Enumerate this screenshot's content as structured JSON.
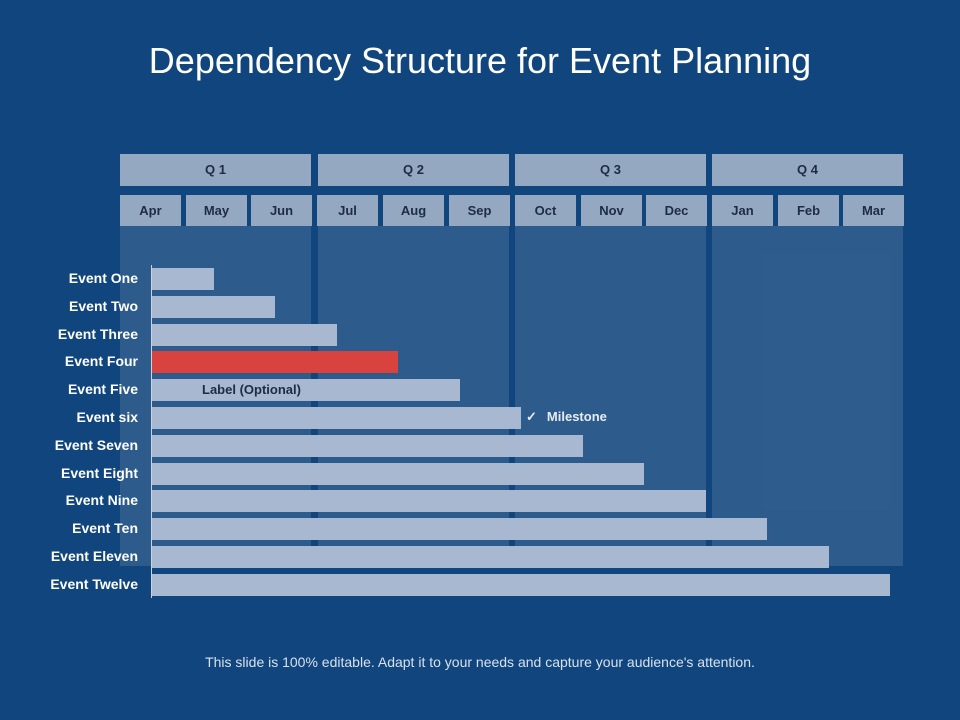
{
  "title": "Dependency Structure for Event Planning",
  "footer": "This slide is 100% editable. Adapt it to your needs and capture your audience's attention.",
  "bar_label": "Label (Optional)",
  "milestone": {
    "icon": "check-icon",
    "label": "Milestone"
  },
  "colors": {
    "background": "#11457d",
    "bar": "#a8b8d0",
    "highlight": "#d9433f",
    "header": "#95a8c2"
  },
  "chart_data": {
    "type": "bar",
    "orientation": "horizontal",
    "title": "Dependency Structure for Event Planning",
    "quarters": [
      "Q 1",
      "Q 2",
      "Q 3",
      "Q 4"
    ],
    "months": [
      "Apr",
      "May",
      "Jun",
      "Jul",
      "Aug",
      "Sep",
      "Oct",
      "Nov",
      "Dec",
      "Jan",
      "Feb",
      "Mar"
    ],
    "categories": [
      "Event One",
      "Event Two",
      "Event Three",
      "Event Four",
      "Event Five",
      "Event six",
      "Event Seven",
      "Event Eight",
      "Event Nine",
      "Event Ten",
      "Event Eleven",
      "Event Twelve"
    ],
    "values": [
      1,
      2,
      3,
      4,
      5,
      6,
      7,
      8,
      9,
      10,
      11,
      12
    ],
    "value_unit": "months",
    "xlim": [
      0,
      12
    ],
    "highlight_index": 3,
    "bar_label_index": 4,
    "milestone_index": 5
  }
}
